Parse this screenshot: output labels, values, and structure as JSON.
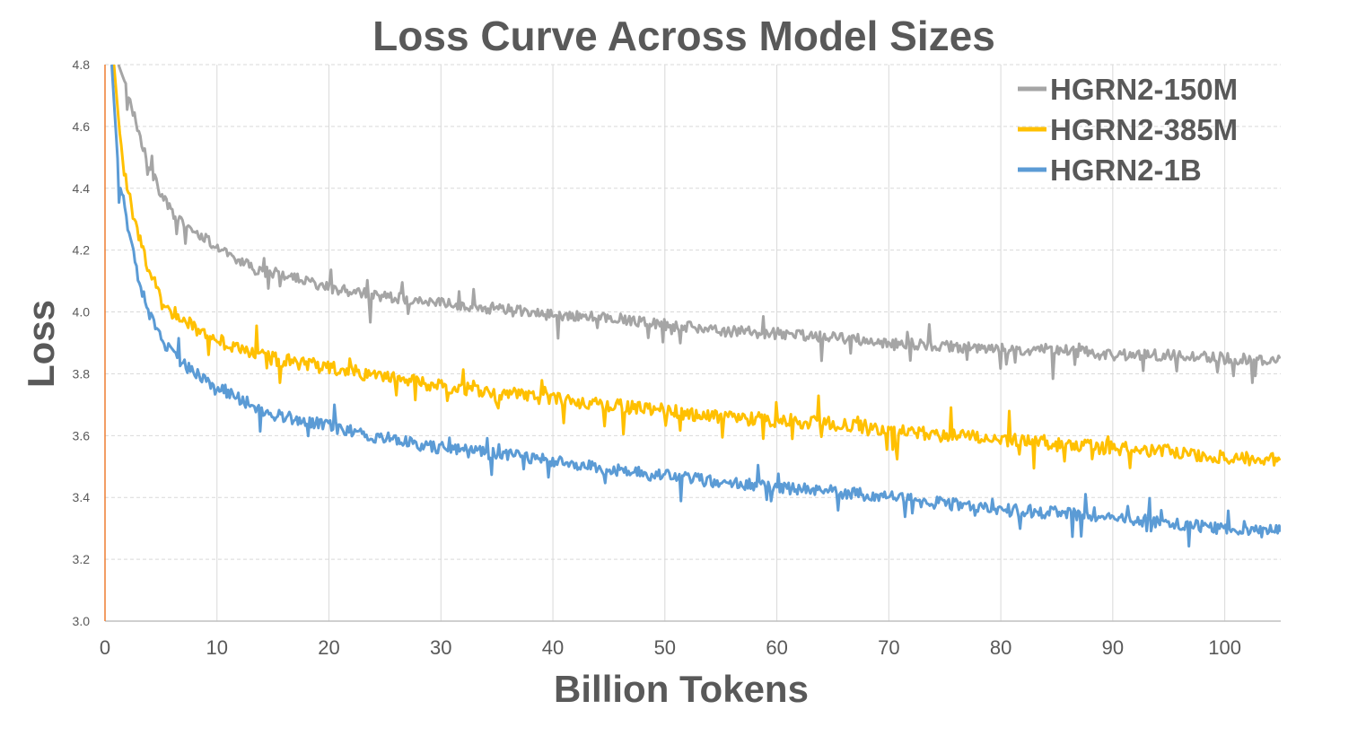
{
  "chart_data": {
    "type": "line",
    "title": "Loss Curve Across Model Sizes",
    "xlabel": "Billion Tokens",
    "ylabel": "Loss",
    "xlim": [
      0,
      105
    ],
    "ylim": [
      3.0,
      4.8
    ],
    "xticks": [
      0,
      10,
      20,
      30,
      40,
      50,
      60,
      70,
      80,
      90,
      100
    ],
    "xtick_labels": [
      "0",
      "10",
      "20",
      "30",
      "40",
      "50",
      "60",
      "70",
      "80",
      "90",
      "100"
    ],
    "yticks": [
      3.0,
      3.2,
      3.4,
      3.6,
      3.8,
      4.0,
      4.2,
      4.4,
      4.6,
      4.8
    ],
    "ytick_labels": [
      "3.0",
      "3.2",
      "3.4",
      "3.6",
      "3.8",
      "4.0",
      "4.2",
      "4.4",
      "4.6",
      "4.8"
    ],
    "grid": true,
    "legend_position": "top-right",
    "series": [
      {
        "name": "HGRN2-150M",
        "color": "#A5A5A5",
        "x": [
          1.2,
          2,
          3,
          4,
          5,
          6,
          8,
          10,
          12,
          14,
          16,
          18,
          20,
          23,
          25,
          30,
          35,
          40,
          45,
          50,
          55,
          60,
          65,
          70,
          75,
          80,
          85,
          90,
          95,
          100,
          105
        ],
        "y": [
          4.8,
          4.72,
          4.58,
          4.47,
          4.38,
          4.32,
          4.26,
          4.21,
          4.17,
          4.13,
          4.12,
          4.1,
          4.08,
          4.06,
          4.05,
          4.03,
          4.01,
          3.99,
          3.98,
          3.96,
          3.94,
          3.93,
          3.92,
          3.9,
          3.89,
          3.88,
          3.88,
          3.86,
          3.86,
          3.85,
          3.84
        ]
      },
      {
        "name": "HGRN2-385M",
        "color": "#FFC000",
        "x": [
          0.8,
          1.5,
          2,
          3,
          4,
          5,
          6,
          8,
          10,
          12,
          15,
          20,
          25,
          30,
          35,
          40,
          45,
          50,
          55,
          60,
          65,
          70,
          75,
          80,
          85,
          90,
          95,
          100,
          105
        ],
        "y": [
          4.8,
          4.5,
          4.4,
          4.24,
          4.13,
          4.05,
          4.0,
          3.95,
          3.91,
          3.88,
          3.85,
          3.82,
          3.79,
          3.76,
          3.74,
          3.72,
          3.7,
          3.68,
          3.66,
          3.65,
          3.64,
          3.62,
          3.6,
          3.59,
          3.57,
          3.56,
          3.55,
          3.53,
          3.52
        ]
      },
      {
        "name": "HGRN2-1B",
        "color": "#5B9BD5",
        "x": [
          0.6,
          1.2,
          2,
          3,
          4,
          5,
          6,
          8,
          10,
          12,
          15,
          20,
          25,
          30,
          35,
          40,
          45,
          50,
          55,
          60,
          65,
          70,
          75,
          80,
          85,
          90,
          95,
          100,
          105
        ],
        "y": [
          4.8,
          4.45,
          4.28,
          4.1,
          3.99,
          3.92,
          3.86,
          3.8,
          3.76,
          3.72,
          3.67,
          3.63,
          3.59,
          3.56,
          3.54,
          3.52,
          3.49,
          3.47,
          3.45,
          3.43,
          3.42,
          3.4,
          3.38,
          3.36,
          3.35,
          3.33,
          3.32,
          3.3,
          3.29
        ]
      }
    ]
  }
}
